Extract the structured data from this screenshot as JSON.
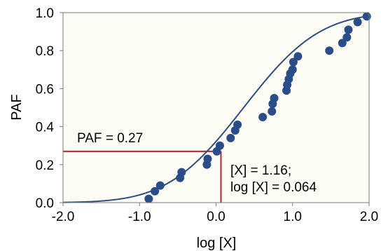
{
  "chart_data": {
    "type": "scatter",
    "title": "",
    "xlabel": "log [X]",
    "ylabel": "PAF",
    "xlim": [
      -2.0,
      2.0
    ],
    "ylim": [
      0.0,
      1.0
    ],
    "x_ticks": [
      "-2.0",
      "-1.0",
      "0.0",
      "1.0",
      "2.0"
    ],
    "y_ticks": [
      "0.0",
      "0.2",
      "0.4",
      "0.6",
      "0.8",
      "1.0"
    ],
    "grid": false,
    "plot_background": "#fdfdf6",
    "series": [
      {
        "kind": "points",
        "color": "#2a4d87",
        "points": [
          {
            "x": -0.88,
            "y": 0.02
          },
          {
            "x": -0.8,
            "y": 0.06
          },
          {
            "x": -0.73,
            "y": 0.09
          },
          {
            "x": -0.47,
            "y": 0.13
          },
          {
            "x": -0.45,
            "y": 0.16
          },
          {
            "x": -0.12,
            "y": 0.2
          },
          {
            "x": -0.11,
            "y": 0.23
          },
          {
            "x": 0.01,
            "y": 0.27
          },
          {
            "x": 0.05,
            "y": 0.3
          },
          {
            "x": 0.19,
            "y": 0.34
          },
          {
            "x": 0.25,
            "y": 0.38
          },
          {
            "x": 0.28,
            "y": 0.41
          },
          {
            "x": 0.61,
            "y": 0.45
          },
          {
            "x": 0.73,
            "y": 0.48
          },
          {
            "x": 0.74,
            "y": 0.52
          },
          {
            "x": 0.76,
            "y": 0.55
          },
          {
            "x": 0.92,
            "y": 0.59
          },
          {
            "x": 0.93,
            "y": 0.62
          },
          {
            "x": 0.95,
            "y": 0.65
          },
          {
            "x": 0.97,
            "y": 0.68
          },
          {
            "x": 1.0,
            "y": 0.7
          },
          {
            "x": 1.01,
            "y": 0.74
          },
          {
            "x": 1.07,
            "y": 0.77
          },
          {
            "x": 1.48,
            "y": 0.8
          },
          {
            "x": 1.65,
            "y": 0.84
          },
          {
            "x": 1.71,
            "y": 0.87
          },
          {
            "x": 1.73,
            "y": 0.91
          },
          {
            "x": 1.85,
            "y": 0.95
          },
          {
            "x": 1.97,
            "y": 0.98
          }
        ]
      },
      {
        "kind": "fitted-curve",
        "color": "#2a4d87",
        "model": "cumulative-normal",
        "mean": 0.36,
        "sd": 0.78
      }
    ],
    "reference_lines": {
      "color": "#c0202a",
      "x": 0.064,
      "y": 0.27
    },
    "annotations": {
      "paf": "PAF = 0.27",
      "x_conc": "[X] = 1.16;",
      "x_log": "log [X] = 0.064"
    }
  }
}
